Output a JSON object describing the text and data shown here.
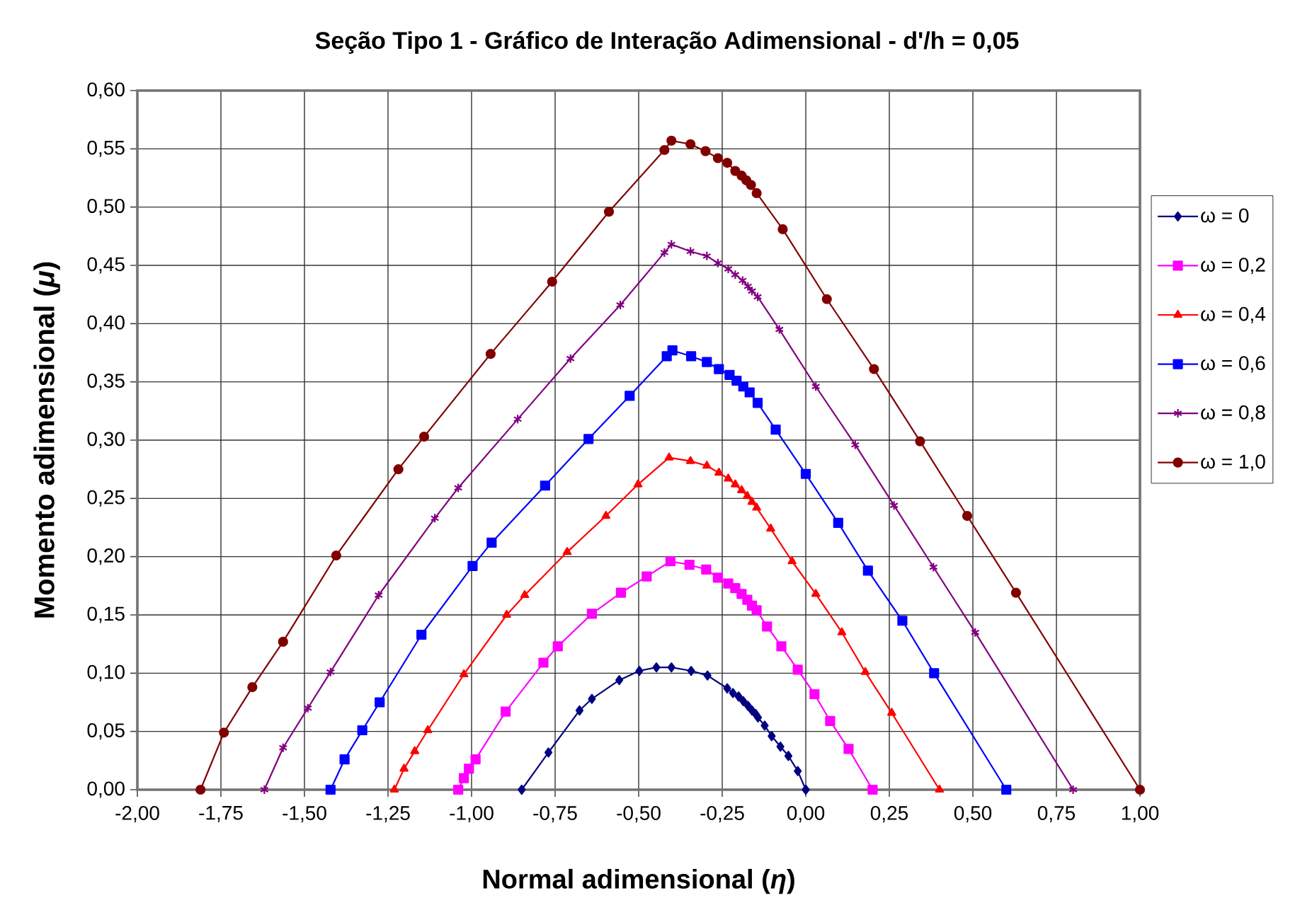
{
  "chart_data": {
    "type": "line",
    "title": "Seção Tipo 1 - Gráfico de Interação Adimensional - d'/h = 0,05",
    "xlabel": "Normal adimensional (*η*)",
    "ylabel": "Momento adimensional (*μ*)",
    "xlim": [
      -2,
      1
    ],
    "ylim": [
      0,
      0.6
    ],
    "xticks": [
      {
        "value": -2,
        "label": "-2,00"
      },
      {
        "value": -1.75,
        "label": "-1,75"
      },
      {
        "value": -1.5,
        "label": "-1,50"
      },
      {
        "value": -1.25,
        "label": "-1,25"
      },
      {
        "value": -1,
        "label": "-1,00"
      },
      {
        "value": -0.75,
        "label": "-0,75"
      },
      {
        "value": -0.5,
        "label": "-0,50"
      },
      {
        "value": -0.25,
        "label": "-0,25"
      },
      {
        "value": 0,
        "label": "0,00"
      },
      {
        "value": 0.25,
        "label": "0,25"
      },
      {
        "value": 0.5,
        "label": "0,50"
      },
      {
        "value": 0.75,
        "label": "0,75"
      },
      {
        "value": 1,
        "label": "1,00"
      }
    ],
    "yticks": [
      {
        "value": 0,
        "label": "0,00"
      },
      {
        "value": 0.05,
        "label": "0,05"
      },
      {
        "value": 0.1,
        "label": "0,10"
      },
      {
        "value": 0.15,
        "label": "0,15"
      },
      {
        "value": 0.2,
        "label": "0,20"
      },
      {
        "value": 0.25,
        "label": "0,25"
      },
      {
        "value": 0.3,
        "label": "0,30"
      },
      {
        "value": 0.35,
        "label": "0,35"
      },
      {
        "value": 0.4,
        "label": "0,40"
      },
      {
        "value": 0.45,
        "label": "0,45"
      },
      {
        "value": 0.5,
        "label": "0,50"
      },
      {
        "value": 0.55,
        "label": "0,55"
      },
      {
        "value": 0.6,
        "label": "0,60"
      }
    ],
    "grid": true,
    "legend": "right",
    "series": [
      {
        "name": "ω = 0",
        "color": "#000080",
        "marker": "diamond",
        "x": [
          -0.85,
          -0.77,
          -0.677,
          -0.64,
          -0.558,
          -0.498,
          -0.447,
          -0.402,
          -0.343,
          -0.294,
          -0.235,
          -0.218,
          -0.201,
          -0.187,
          -0.173,
          -0.161,
          -0.15,
          -0.143,
          -0.123,
          -0.102,
          -0.076,
          -0.052,
          -0.024,
          0
        ],
        "values": [
          0,
          0.032,
          0.068,
          0.078,
          0.094,
          0.102,
          0.105,
          0.105,
          0.102,
          0.098,
          0.087,
          0.083,
          0.08,
          0.076,
          0.072,
          0.068,
          0.065,
          0.062,
          0.055,
          0.046,
          0.037,
          0.029,
          0.016,
          0
        ]
      },
      {
        "name": "ω = 0,2",
        "color": "#ff00ff",
        "marker": "square",
        "x": [
          -1.04,
          -1.023,
          -1.008,
          -0.988,
          -0.898,
          -0.785,
          -0.742,
          -0.64,
          -0.553,
          -0.476,
          -0.405,
          -0.348,
          -0.298,
          -0.263,
          -0.232,
          -0.211,
          -0.192,
          -0.175,
          -0.161,
          -0.147,
          -0.116,
          -0.073,
          -0.024,
          0.026,
          0.073,
          0.128,
          0.2
        ],
        "values": [
          0,
          0.01,
          0.018,
          0.026,
          0.067,
          0.109,
          0.123,
          0.151,
          0.169,
          0.183,
          0.196,
          0.193,
          0.189,
          0.182,
          0.177,
          0.173,
          0.168,
          0.163,
          0.158,
          0.154,
          0.14,
          0.123,
          0.103,
          0.082,
          0.059,
          0.035,
          0
        ]
      },
      {
        "name": "ω = 0,4",
        "color": "#ff0000",
        "marker": "triangle",
        "x": [
          -1.231,
          -1.202,
          -1.17,
          -1.131,
          -1.023,
          -0.895,
          -0.841,
          -0.714,
          -0.598,
          -0.502,
          -0.409,
          -0.345,
          -0.296,
          -0.26,
          -0.232,
          -0.211,
          -0.192,
          -0.175,
          -0.161,
          -0.147,
          -0.105,
          -0.041,
          0.03,
          0.108,
          0.178,
          0.257,
          0.4
        ],
        "values": [
          0,
          0.018,
          0.033,
          0.051,
          0.099,
          0.15,
          0.167,
          0.204,
          0.235,
          0.262,
          0.285,
          0.282,
          0.278,
          0.272,
          0.267,
          0.262,
          0.257,
          0.252,
          0.247,
          0.242,
          0.224,
          0.196,
          0.168,
          0.135,
          0.101,
          0.066,
          0
        ]
      },
      {
        "name": "ω = 0,6",
        "color": "#0000ff",
        "marker": "square",
        "x": [
          -1.422,
          -1.38,
          -1.327,
          -1.275,
          -1.15,
          -0.997,
          -0.94,
          -0.78,
          -0.65,
          -0.527,
          -0.416,
          -0.399,
          -0.343,
          -0.296,
          -0.26,
          -0.228,
          -0.207,
          -0.187,
          -0.168,
          -0.144,
          -0.09,
          0,
          0.097,
          0.186,
          0.289,
          0.384,
          0.6
        ],
        "values": [
          0,
          0.026,
          0.051,
          0.075,
          0.133,
          0.192,
          0.212,
          0.261,
          0.301,
          0.338,
          0.372,
          0.377,
          0.372,
          0.367,
          0.361,
          0.356,
          0.351,
          0.346,
          0.341,
          0.332,
          0.309,
          0.271,
          0.229,
          0.188,
          0.145,
          0.1,
          0
        ]
      },
      {
        "name": "ω = 0,8",
        "color": "#800080",
        "marker": "cross",
        "x": [
          -1.62,
          -1.564,
          -1.49,
          -1.422,
          -1.278,
          -1.11,
          -1.04,
          -0.862,
          -0.704,
          -0.555,
          -0.423,
          -0.402,
          -0.345,
          -0.296,
          -0.263,
          -0.232,
          -0.211,
          -0.189,
          -0.173,
          -0.161,
          -0.144,
          -0.079,
          0.03,
          0.148,
          0.264,
          0.382,
          0.507,
          0.8
        ],
        "values": [
          0,
          0.036,
          0.07,
          0.101,
          0.167,
          0.233,
          0.259,
          0.318,
          0.37,
          0.416,
          0.461,
          0.468,
          0.462,
          0.458,
          0.452,
          0.447,
          0.442,
          0.437,
          0.432,
          0.428,
          0.423,
          0.395,
          0.346,
          0.296,
          0.244,
          0.191,
          0.135,
          0
        ]
      },
      {
        "name": "ω = 1,0",
        "color": "#800000",
        "marker": "circle",
        "x": [
          -1.811,
          -1.741,
          -1.656,
          -1.564,
          -1.405,
          -1.219,
          -1.142,
          -0.943,
          -0.759,
          -0.589,
          -0.423,
          -0.402,
          -0.345,
          -0.3,
          -0.263,
          -0.235,
          -0.211,
          -0.192,
          -0.178,
          -0.164,
          -0.147,
          -0.069,
          0.063,
          0.204,
          0.342,
          0.483,
          0.629,
          1
        ],
        "values": [
          0,
          0.049,
          0.088,
          0.127,
          0.201,
          0.275,
          0.303,
          0.374,
          0.436,
          0.496,
          0.549,
          0.557,
          0.554,
          0.548,
          0.542,
          0.538,
          0.531,
          0.527,
          0.523,
          0.519,
          0.512,
          0.481,
          0.421,
          0.361,
          0.299,
          0.235,
          0.169,
          0
        ]
      }
    ]
  }
}
